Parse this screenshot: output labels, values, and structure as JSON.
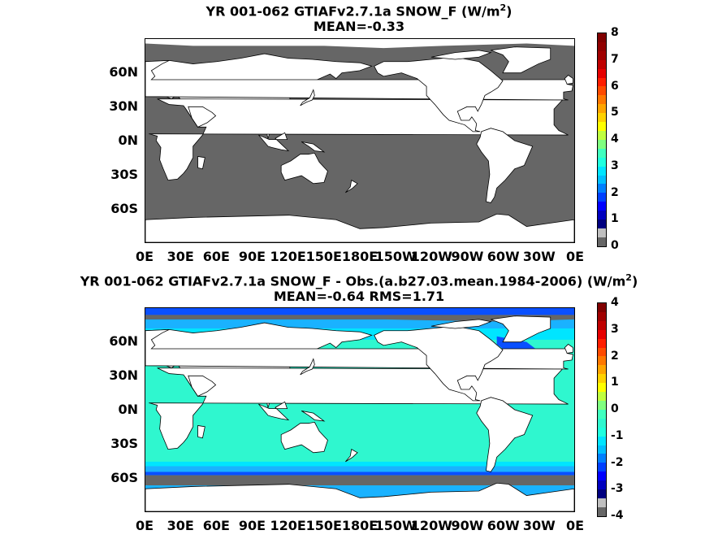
{
  "chart_data": [
    {
      "type": "heatmap",
      "title": "YR 001-062 GTIAFv2.7.1a  SNOW_F (W/m",
      "title_sup": "2",
      "title_end": ")",
      "subtitle": "MEAN=-0.33",
      "xticks": [
        "0E",
        "30E",
        "60E",
        "90E",
        "120E",
        "150E",
        "180E",
        "150W",
        "120W",
        "90W",
        "60W",
        "30W",
        "0E"
      ],
      "yticks": [
        "60N",
        "30N",
        "0N",
        "30S",
        "60S"
      ],
      "ytick_values": [
        60,
        30,
        0,
        -30,
        -60
      ],
      "colorbar_ticks": [
        "0",
        "1",
        "2",
        "3",
        "4",
        "5",
        "6",
        "7",
        "8"
      ],
      "colorbar_range": [
        0,
        8
      ],
      "mean": -0.33,
      "field_color": "#666666"
    },
    {
      "type": "heatmap",
      "title": "YR 001-062 GTIAFv2.7.1a SNOW_F - Obs.(a.b27.03.mean.1984-2006) (W/m",
      "title_sup": "2",
      "title_end": ")",
      "subtitle": "MEAN=-0.64 RMS=1.71",
      "xticks": [
        "0E",
        "30E",
        "60E",
        "90E",
        "120E",
        "150E",
        "180E",
        "150W",
        "120W",
        "90W",
        "60W",
        "30W",
        "0E"
      ],
      "yticks": [
        "60N",
        "30N",
        "0N",
        "30S",
        "60S"
      ],
      "ytick_values": [
        60,
        30,
        0,
        -30,
        -60
      ],
      "colorbar_ticks": [
        "-4",
        "-3",
        "-2",
        "-1",
        "0",
        "1",
        "2",
        "3",
        "4"
      ],
      "colorbar_range": [
        -4,
        4
      ],
      "mean": -0.64,
      "rms": 1.71,
      "field_color": "#2ff7cf"
    }
  ],
  "colors": {
    "land": "#ffffff",
    "gray_field": "#666666",
    "teal_field": "#2ff7cf",
    "cyan": "#00e5ff",
    "light_blue": "#1ab2ff",
    "blue": "#0a50ff",
    "dark_blue": "#000a9e"
  }
}
